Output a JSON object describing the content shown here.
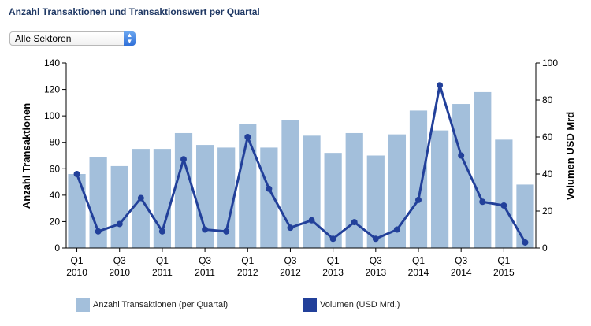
{
  "title": "Anzahl Transaktionen und Transaktionswert per Quartal",
  "sector_select": {
    "value": "Alle Sektoren",
    "arrow_icon": "select-arrows-icon"
  },
  "colors": {
    "bars": "#a3bfdb",
    "line": "#22409a",
    "title": "#1f3864"
  },
  "legend": {
    "bars_label": "Anzahl Transaktionen (per Quartal)",
    "line_label": "Volumen (USD Mrd.)"
  },
  "chart_data": {
    "type": "bar",
    "ylabel": "Anzahl Transaktionen",
    "y2label": "Volumen USD Mrd",
    "ylim": [
      0,
      140
    ],
    "y2lim": [
      0,
      100
    ],
    "yticks": [
      0,
      20,
      40,
      60,
      80,
      100,
      120,
      140
    ],
    "y2ticks": [
      0,
      20,
      40,
      60,
      80,
      100
    ],
    "x_tick_labels": [
      {
        "index": 0,
        "q": "Q1",
        "year": "2010"
      },
      {
        "index": 2,
        "q": "Q3",
        "year": "2010"
      },
      {
        "index": 4,
        "q": "Q1",
        "year": "2011"
      },
      {
        "index": 6,
        "q": "Q3",
        "year": "2011"
      },
      {
        "index": 8,
        "q": "Q1",
        "year": "2012"
      },
      {
        "index": 10,
        "q": "Q3",
        "year": "2012"
      },
      {
        "index": 12,
        "q": "Q1",
        "year": "2013"
      },
      {
        "index": 14,
        "q": "Q3",
        "year": "2013"
      },
      {
        "index": 16,
        "q": "Q1",
        "year": "2014"
      },
      {
        "index": 18,
        "q": "Q3",
        "year": "2014"
      },
      {
        "index": 20,
        "q": "Q1",
        "year": "2015"
      }
    ],
    "categories": [
      "Q1 2010",
      "Q2 2010",
      "Q3 2010",
      "Q4 2010",
      "Q1 2011",
      "Q2 2011",
      "Q3 2011",
      "Q4 2011",
      "Q1 2012",
      "Q2 2012",
      "Q3 2012",
      "Q4 2012",
      "Q1 2013",
      "Q2 2013",
      "Q3 2013",
      "Q4 2013",
      "Q1 2014",
      "Q2 2014",
      "Q3 2014",
      "Q4 2014",
      "Q1 2015",
      "Q2 2015"
    ],
    "grid": false,
    "legend_position": "bottom",
    "series": [
      {
        "name": "Anzahl Transaktionen (per Quartal)",
        "kind": "bar",
        "axis": "left",
        "values": [
          56,
          69,
          62,
          75,
          75,
          87,
          78,
          76,
          94,
          76,
          97,
          85,
          72,
          87,
          70,
          86,
          104,
          89,
          109,
          118,
          82,
          48
        ]
      },
      {
        "name": "Volumen (USD Mrd.)",
        "kind": "line",
        "axis": "right",
        "values": [
          40,
          9,
          13,
          27,
          9,
          48,
          10,
          9,
          60,
          32,
          11,
          15,
          5,
          14,
          5,
          10,
          26,
          88,
          50,
          25,
          23,
          3
        ]
      }
    ]
  }
}
